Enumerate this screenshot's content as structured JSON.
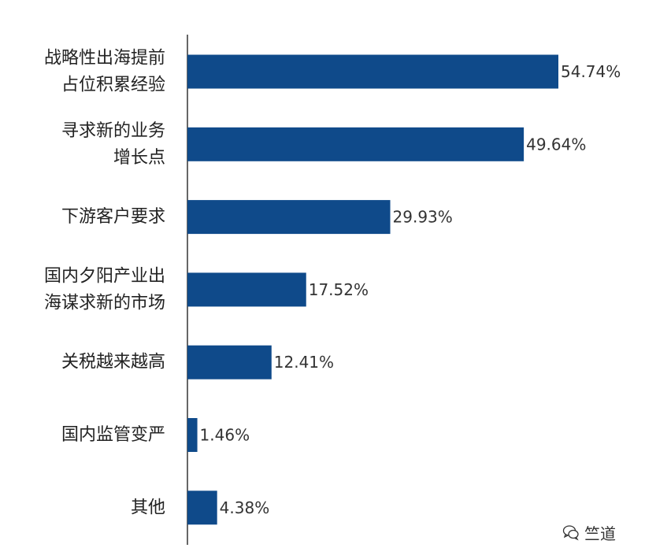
{
  "chart_data": {
    "type": "bar",
    "orientation": "horizontal",
    "categories": [
      [
        "战略性出海提前",
        "占位积累经验"
      ],
      [
        "寻求新的业务",
        "增长点"
      ],
      [
        "下游客户要求"
      ],
      [
        "国内夕阳产业出",
        "海谋求新的市场"
      ],
      [
        "关税越来越高"
      ],
      [
        "国内监管变严"
      ],
      [
        "其他"
      ]
    ],
    "values": [
      54.74,
      49.64,
      29.93,
      17.52,
      12.41,
      1.46,
      4.38
    ],
    "value_labels": [
      "54.74%",
      "49.64%",
      "29.93%",
      "17.52%",
      "12.41%",
      "1.46%",
      "4.38%"
    ],
    "xlim": [
      0,
      54.74
    ],
    "bar_color": "#0f4a8a",
    "grid": false
  },
  "watermark": {
    "icon": "wechat-icon",
    "text": "竺道"
  }
}
